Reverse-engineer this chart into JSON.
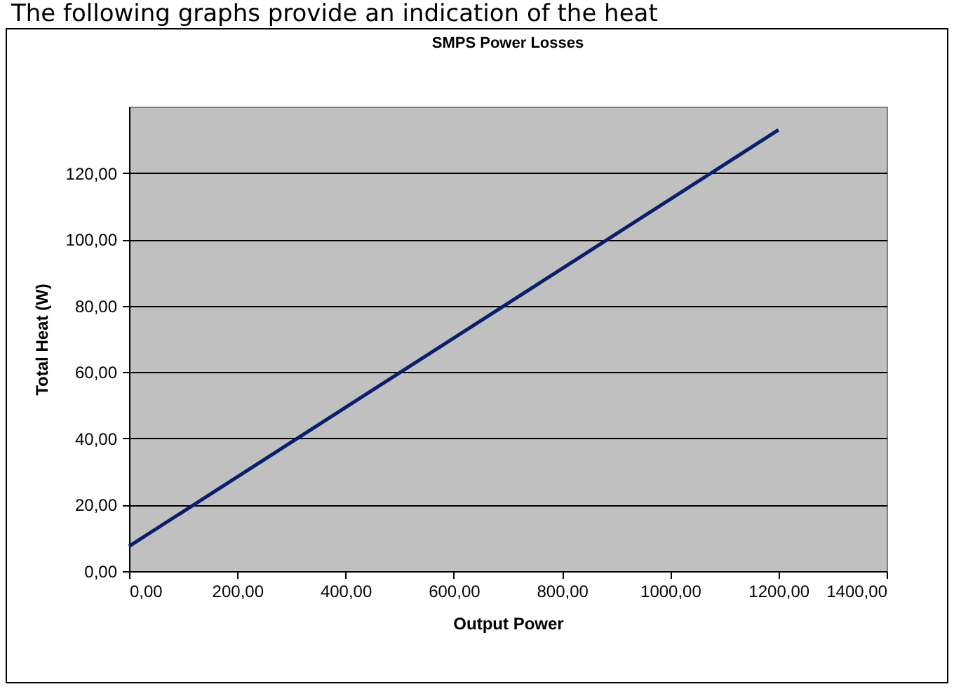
{
  "chart_data": {
    "type": "line",
    "title": "SMPS Power Losses",
    "xlabel": "Output Power",
    "ylabel": "Total Heat (W)",
    "annotations": [
      "The following graphs provide an indication of the heat"
    ],
    "x": [
      0,
      1200
    ],
    "series": [
      {
        "color": "#0a1f6b",
        "values": [
          7.5,
          133
        ]
      }
    ],
    "xlim": [
      0,
      1400
    ],
    "ylim": [
      0,
      140
    ],
    "xticks": [
      {
        "value": 0,
        "label": "0,00"
      },
      {
        "value": 200,
        "label": "200,00"
      },
      {
        "value": 400,
        "label": "400,00"
      },
      {
        "value": 600,
        "label": "600,00"
      },
      {
        "value": 800,
        "label": "800,00"
      },
      {
        "value": 1000,
        "label": "1000,00"
      },
      {
        "value": 1200,
        "label": "1200,00"
      },
      {
        "value": 1400,
        "label": "1400,00"
      }
    ],
    "yticks": [
      {
        "value": 0,
        "label": "0,00"
      },
      {
        "value": 20,
        "label": "20,00"
      },
      {
        "value": 40,
        "label": "40,00"
      },
      {
        "value": 60,
        "label": "60,00"
      },
      {
        "value": 80,
        "label": "80,00"
      },
      {
        "value": 100,
        "label": "100,00"
      },
      {
        "value": 120,
        "label": "120,00"
      }
    ],
    "grid": "y",
    "marker": "none",
    "line_style": "solid"
  }
}
